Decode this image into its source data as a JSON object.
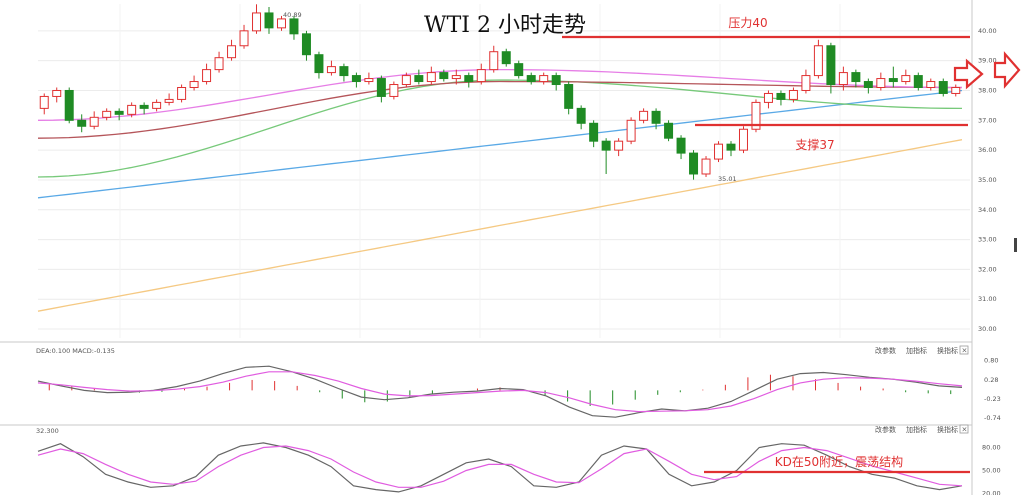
{
  "chart_data": {
    "type": "candlestick",
    "title": "WTI 2 小时走势",
    "price_axis": {
      "ylim": [
        29.7,
        40.9
      ],
      "ticks": [
        "40.00",
        "39.00",
        "38.00",
        "37.00",
        "36.00",
        "35.00",
        "34.00",
        "33.00",
        "32.00",
        "31.00",
        "30.00"
      ]
    },
    "annotations": {
      "resistance": {
        "label": "压力40",
        "value": 40.0
      },
      "support": {
        "label": "支撑37",
        "value": 37.0
      },
      "high_label": "40.89",
      "low_label": "35.01",
      "kd_note": "KD在50附近，震荡结构"
    },
    "price_lines": [
      {
        "name": "ma_yellow",
        "color": "#f5c983",
        "values": [
          30.6,
          36.35
        ]
      },
      {
        "name": "ma_blue",
        "color": "#5aa9e6",
        "values": [
          34.4,
          38.0
        ]
      },
      {
        "name": "ma_green",
        "color": "#77c97a",
        "values": [
          35.1,
          38.35,
          37.4
        ]
      },
      {
        "name": "ma_brown",
        "color": "#b5555a",
        "values": [
          36.4,
          38.3,
          38.1
        ]
      },
      {
        "name": "ma_pink",
        "color": "#e67ee6",
        "values": [
          37.0,
          38.7,
          38.1
        ]
      }
    ],
    "candles": [
      [
        37.4,
        37.8,
        37.2,
        37.9
      ],
      [
        37.8,
        38.0,
        37.6,
        38.1
      ],
      [
        38.0,
        37.0,
        36.9,
        38.1
      ],
      [
        37.0,
        36.8,
        36.6,
        37.2
      ],
      [
        36.8,
        37.1,
        36.7,
        37.3
      ],
      [
        37.1,
        37.3,
        37.0,
        37.4
      ],
      [
        37.3,
        37.2,
        37.0,
        37.4
      ],
      [
        37.2,
        37.5,
        37.1,
        37.6
      ],
      [
        37.5,
        37.4,
        37.2,
        37.6
      ],
      [
        37.4,
        37.6,
        37.3,
        37.7
      ],
      [
        37.6,
        37.7,
        37.5,
        37.9
      ],
      [
        37.7,
        38.1,
        37.6,
        38.2
      ],
      [
        38.1,
        38.3,
        38.0,
        38.5
      ],
      [
        38.3,
        38.7,
        38.2,
        38.9
      ],
      [
        38.7,
        39.1,
        38.6,
        39.3
      ],
      [
        39.1,
        39.5,
        39.0,
        39.7
      ],
      [
        39.5,
        40.0,
        39.4,
        40.2
      ],
      [
        40.0,
        40.6,
        39.9,
        40.89
      ],
      [
        40.6,
        40.1,
        39.9,
        40.8
      ],
      [
        40.1,
        40.4,
        40.0,
        40.5
      ],
      [
        40.4,
        39.9,
        39.7,
        40.5
      ],
      [
        39.9,
        39.2,
        39.0,
        40.0
      ],
      [
        39.2,
        38.6,
        38.4,
        39.3
      ],
      [
        38.6,
        38.8,
        38.5,
        39.0
      ],
      [
        38.8,
        38.5,
        38.3,
        38.9
      ],
      [
        38.5,
        38.3,
        38.1,
        38.6
      ],
      [
        38.3,
        38.4,
        38.2,
        38.6
      ],
      [
        38.4,
        37.8,
        37.6,
        38.5
      ],
      [
        37.8,
        38.2,
        37.7,
        38.3
      ],
      [
        38.2,
        38.5,
        38.1,
        38.6
      ],
      [
        38.5,
        38.3,
        38.2,
        38.7
      ],
      [
        38.3,
        38.6,
        38.2,
        38.8
      ],
      [
        38.6,
        38.4,
        38.3,
        38.7
      ],
      [
        38.4,
        38.5,
        38.2,
        38.7
      ],
      [
        38.5,
        38.3,
        38.1,
        38.6
      ],
      [
        38.3,
        38.7,
        38.2,
        38.9
      ],
      [
        38.7,
        39.3,
        38.6,
        39.5
      ],
      [
        39.3,
        38.9,
        38.8,
        39.4
      ],
      [
        38.9,
        38.5,
        38.4,
        39.0
      ],
      [
        38.5,
        38.3,
        38.2,
        38.6
      ],
      [
        38.3,
        38.5,
        38.2,
        38.6
      ],
      [
        38.5,
        38.2,
        38.0,
        38.6
      ],
      [
        38.2,
        37.4,
        37.2,
        38.3
      ],
      [
        37.4,
        36.9,
        36.7,
        37.5
      ],
      [
        36.9,
        36.3,
        36.1,
        37.0
      ],
      [
        36.3,
        36.0,
        35.2,
        36.4
      ],
      [
        36.0,
        36.3,
        35.8,
        36.4
      ],
      [
        36.3,
        37.0,
        36.2,
        37.1
      ],
      [
        37.0,
        37.3,
        36.9,
        37.4
      ],
      [
        37.3,
        36.9,
        36.7,
        37.4
      ],
      [
        36.9,
        36.4,
        36.3,
        37.0
      ],
      [
        36.4,
        35.9,
        35.7,
        36.5
      ],
      [
        35.9,
        35.2,
        35.01,
        36.0
      ],
      [
        35.2,
        35.7,
        35.1,
        35.8
      ],
      [
        35.7,
        36.2,
        35.6,
        36.3
      ],
      [
        36.2,
        36.0,
        35.8,
        36.3
      ],
      [
        36.0,
        36.7,
        35.9,
        36.8
      ],
      [
        36.7,
        37.6,
        36.6,
        37.7
      ],
      [
        37.6,
        37.9,
        37.4,
        38.0
      ],
      [
        37.9,
        37.7,
        37.5,
        38.0
      ],
      [
        37.7,
        38.0,
        37.6,
        38.1
      ],
      [
        38.0,
        38.5,
        37.9,
        38.7
      ],
      [
        38.5,
        39.5,
        38.4,
        39.7
      ],
      [
        39.5,
        38.2,
        37.9,
        39.6
      ],
      [
        38.2,
        38.6,
        38.0,
        38.8
      ],
      [
        38.6,
        38.3,
        38.1,
        38.7
      ],
      [
        38.3,
        38.1,
        37.9,
        38.4
      ],
      [
        38.1,
        38.4,
        38.0,
        38.6
      ],
      [
        38.4,
        38.3,
        38.1,
        38.8
      ],
      [
        38.3,
        38.5,
        38.2,
        38.7
      ],
      [
        38.5,
        38.1,
        38.0,
        38.6
      ],
      [
        38.1,
        38.3,
        38.0,
        38.4
      ],
      [
        38.3,
        37.9,
        37.8,
        38.4
      ],
      [
        37.9,
        38.1,
        37.8,
        38.2
      ]
    ],
    "macd": {
      "label": "DEA:0.100  MACD:-0.135",
      "ticks": [
        "0.80",
        "0.28",
        "-0.23",
        "-0.74"
      ],
      "ylim": [
        -0.85,
        0.95
      ],
      "dif": [
        0.25,
        0.12,
        0.0,
        -0.06,
        -0.05,
        0.0,
        0.1,
        0.25,
        0.45,
        0.62,
        0.65,
        0.5,
        0.3,
        0.05,
        -0.18,
        -0.25,
        -0.2,
        -0.1,
        -0.05,
        -0.02,
        0.05,
        0.02,
        -0.15,
        -0.45,
        -0.68,
        -0.72,
        -0.6,
        -0.5,
        -0.55,
        -0.48,
        -0.3,
        0.0,
        0.3,
        0.45,
        0.48,
        0.42,
        0.35,
        0.3,
        0.22,
        0.12,
        0.08
      ],
      "dea": [
        0.2,
        0.15,
        0.08,
        0.02,
        -0.02,
        -0.01,
        0.03,
        0.1,
        0.22,
        0.38,
        0.5,
        0.5,
        0.4,
        0.25,
        0.05,
        -0.1,
        -0.15,
        -0.14,
        -0.1,
        -0.06,
        -0.02,
        0.0,
        -0.06,
        -0.2,
        -0.38,
        -0.52,
        -0.57,
        -0.56,
        -0.55,
        -0.52,
        -0.42,
        -0.22,
        0.02,
        0.2,
        0.3,
        0.34,
        0.33,
        0.3,
        0.25,
        0.18,
        0.12
      ],
      "hist": [
        0.18,
        0.12,
        0.06,
        0.0,
        -0.06,
        -0.04,
        0.04,
        0.1,
        0.2,
        0.28,
        0.25,
        0.12,
        -0.05,
        -0.22,
        -0.32,
        -0.3,
        -0.2,
        -0.1,
        0.0,
        0.05,
        0.08,
        0.0,
        -0.15,
        -0.3,
        -0.42,
        -0.38,
        -0.25,
        -0.12,
        -0.05,
        0.02,
        0.15,
        0.35,
        0.42,
        0.38,
        0.3,
        0.2,
        0.1,
        0.05,
        -0.05,
        -0.08,
        -0.1
      ]
    },
    "kd": {
      "label": "32.300",
      "ticks": [
        "80.00",
        "50.00",
        "20.00"
      ],
      "ylim": [
        18,
        95
      ],
      "k": [
        75,
        85,
        68,
        45,
        35,
        28,
        30,
        42,
        70,
        82,
        86,
        80,
        70,
        55,
        30,
        25,
        22,
        30,
        45,
        60,
        65,
        55,
        30,
        28,
        35,
        70,
        82,
        78,
        45,
        30,
        35,
        50,
        80,
        85,
        83,
        70,
        55,
        45,
        40,
        30,
        25,
        30
      ],
      "d": [
        70,
        78,
        72,
        58,
        45,
        35,
        32,
        36,
        55,
        70,
        80,
        82,
        76,
        65,
        48,
        35,
        28,
        28,
        36,
        50,
        58,
        58,
        45,
        35,
        34,
        52,
        72,
        78,
        62,
        45,
        38,
        42,
        62,
        76,
        80,
        76,
        66,
        56,
        48,
        40,
        32,
        30
      ],
      "ref_line": 50
    },
    "toolbar": [
      "改参数",
      "加指标",
      "换指标"
    ],
    "colors": {
      "up": "#e03131",
      "down": "#1f8b24",
      "annotation": "#e03131"
    }
  }
}
